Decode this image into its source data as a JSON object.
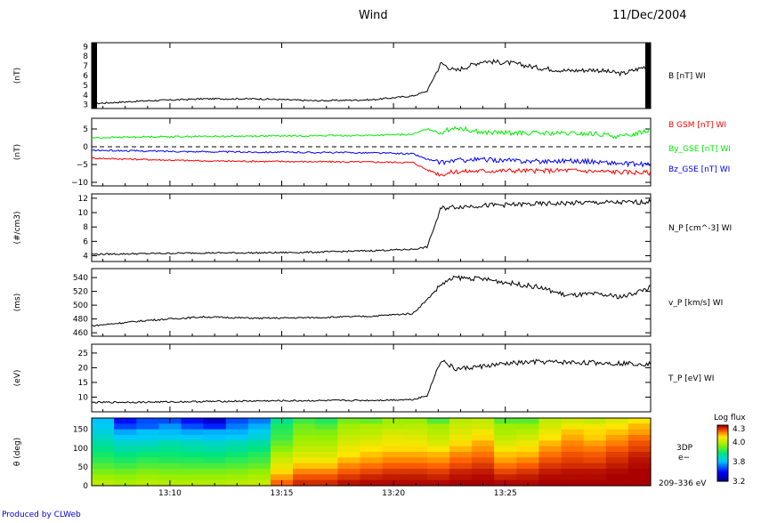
{
  "header": {
    "title": "Wind",
    "date": "11/Dec/2004"
  },
  "footer": {
    "credit": "Produced by CLWeb"
  },
  "chart_data": [
    {
      "type": "line",
      "panel": "B",
      "ylabel": "(nT)",
      "series_label": "B [nT] WI",
      "yticks": [
        "3",
        "4",
        "5",
        "6",
        "7",
        "8",
        "9"
      ],
      "ylim": [
        2.6,
        9.4
      ],
      "x_range_min": [
        0,
        20
      ],
      "x": [
        0,
        2,
        4,
        6,
        8,
        10,
        11.5,
        12,
        12.5,
        13,
        14,
        15,
        16,
        17,
        18,
        19,
        20
      ],
      "series": [
        {
          "color": "#000000",
          "values": [
            3.1,
            3.4,
            3.6,
            3.6,
            3.4,
            3.5,
            3.9,
            4.4,
            7.3,
            6.5,
            7.5,
            7.3,
            6.8,
            6.5,
            6.6,
            6.2,
            7.1
          ]
        }
      ]
    },
    {
      "type": "line",
      "panel": "B components",
      "ylabel": "(nT)",
      "yticks": [
        "5",
        "0",
        "−5",
        "−10"
      ],
      "ylim": [
        -11,
        8
      ],
      "zero_line": true,
      "x": [
        0,
        2,
        4,
        6,
        8,
        10,
        11.5,
        12,
        12.5,
        13,
        14,
        15,
        16,
        17,
        18,
        19,
        20
      ],
      "series": [
        {
          "name": "B GSM [nT] WI",
          "color": "#ff0000",
          "values": [
            -3.2,
            -3.6,
            -4.0,
            -4.1,
            -4.2,
            -4.3,
            -4.4,
            -6.5,
            -7.8,
            -7.0,
            -6.8,
            -6.7,
            -6.8,
            -6.6,
            -6.9,
            -7.1,
            -7.3
          ]
        },
        {
          "name": "By_GSE [nT] WI",
          "color": "#00ee00",
          "values": [
            2.5,
            2.8,
            2.9,
            3.0,
            3.1,
            3.2,
            3.5,
            5.0,
            4.0,
            5.5,
            4.0,
            3.9,
            3.8,
            3.7,
            3.6,
            2.8,
            4.8
          ]
        },
        {
          "name": "Bz_GSE [nT] WI",
          "color": "#0000ff",
          "values": [
            -1.0,
            -1.2,
            -1.4,
            -1.5,
            -1.6,
            -1.7,
            -2.0,
            -3.5,
            -4.5,
            -3.8,
            -3.6,
            -3.9,
            -4.1,
            -3.9,
            -4.2,
            -4.8,
            -5.0
          ]
        }
      ]
    },
    {
      "type": "line",
      "panel": "N_P",
      "ylabel": "(#/cm3)",
      "series_label": "N_P [cm^-3] WI",
      "yticks": [
        "4",
        "6",
        "8",
        "10",
        "12"
      ],
      "ylim": [
        3.2,
        12.6
      ],
      "x": [
        0,
        2,
        4,
        6,
        8,
        10,
        11.5,
        12,
        12.5,
        13,
        14,
        15,
        16,
        17,
        18,
        19,
        20
      ],
      "series": [
        {
          "color": "#000000",
          "values": [
            4.2,
            4.3,
            4.4,
            4.4,
            4.5,
            4.7,
            4.9,
            5.2,
            10.6,
            10.8,
            11.0,
            11.1,
            11.2,
            11.3,
            11.4,
            11.4,
            11.5
          ]
        }
      ]
    },
    {
      "type": "line",
      "panel": "v_P",
      "ylabel": "(ms)",
      "series_label": "v_P [km/s] WI",
      "yticks": [
        "460",
        "480",
        "500",
        "520",
        "540"
      ],
      "ylim": [
        455,
        553
      ],
      "x": [
        0,
        2,
        4,
        6,
        8,
        10,
        11.5,
        12,
        12.5,
        13,
        14,
        15,
        16,
        17,
        18,
        19,
        20
      ],
      "series": [
        {
          "color": "#000000",
          "values": [
            470,
            478,
            483,
            481,
            482,
            484,
            488,
            508,
            530,
            540,
            538,
            532,
            526,
            514,
            516,
            512,
            526
          ]
        }
      ]
    },
    {
      "type": "line",
      "panel": "T_P",
      "ylabel": "(eV)",
      "series_label": "T_P [eV] WI",
      "yticks": [
        "10",
        "15",
        "20",
        "25"
      ],
      "ylim": [
        5,
        28
      ],
      "x": [
        0,
        2,
        4,
        6,
        8,
        10,
        11.5,
        12,
        12.5,
        13,
        14,
        15,
        16,
        17,
        18,
        19,
        20
      ],
      "series": [
        {
          "color": "#000000",
          "values": [
            8.2,
            8.3,
            8.5,
            8.7,
            8.8,
            8.9,
            9.2,
            10.5,
            22.8,
            19.5,
            20.5,
            21.5,
            22,
            21.8,
            21.7,
            21.5,
            21.3
          ]
        }
      ]
    },
    {
      "type": "heatmap",
      "panel": "3DP e-",
      "ylabel": "θ (deg)",
      "yticks": [
        "0",
        "50",
        "100",
        "150"
      ],
      "ylim": [
        0,
        180
      ],
      "side_label": [
        "3DP",
        "e−",
        "209–336 eV"
      ],
      "colorbar": {
        "title": "Log flux",
        "ticks": [
          "4.3",
          "4.0",
          "3.8",
          "3.2"
        ],
        "min": 3.2,
        "max": 4.3
      },
      "xticks": [
        "13:10",
        "13:15",
        "13:20",
        "13:25"
      ],
      "x_start_min": 6.5,
      "bin_width_min": 1.0,
      "theta_bin_edges": [
        0,
        15,
        30,
        45,
        60,
        75,
        90,
        105,
        120,
        135,
        150,
        165,
        180
      ],
      "values_rows_top_to_bottom": [
        [
          3.58,
          3.38,
          3.45,
          3.45,
          3.38,
          3.3,
          3.45,
          3.5,
          3.72,
          3.82,
          3.79,
          3.88,
          3.86,
          3.93,
          3.92,
          3.84,
          3.97,
          3.98,
          3.85,
          3.85,
          3.98,
          4.01,
          3.99,
          4.03,
          4.07
        ],
        [
          3.6,
          3.44,
          3.47,
          3.53,
          3.45,
          3.4,
          3.5,
          3.56,
          3.78,
          3.87,
          3.84,
          3.93,
          3.95,
          3.96,
          3.97,
          3.94,
          4.0,
          4.01,
          3.93,
          3.92,
          4.01,
          4.06,
          4.06,
          4.08,
          4.12
        ],
        [
          3.63,
          3.55,
          3.58,
          3.57,
          3.55,
          3.56,
          3.56,
          3.61,
          3.8,
          3.89,
          3.89,
          3.96,
          3.97,
          4.01,
          4.0,
          3.96,
          4.02,
          4.06,
          3.95,
          3.97,
          4.05,
          4.11,
          4.09,
          4.11,
          4.14
        ],
        [
          3.66,
          3.59,
          3.6,
          3.61,
          3.6,
          3.58,
          3.6,
          3.64,
          3.82,
          3.92,
          3.91,
          3.99,
          4.0,
          4.04,
          4.03,
          3.99,
          4.05,
          4.09,
          3.98,
          4.01,
          4.08,
          4.13,
          4.1,
          4.14,
          4.18
        ],
        [
          3.7,
          3.66,
          3.66,
          3.69,
          3.67,
          3.66,
          3.68,
          3.7,
          3.86,
          3.95,
          3.95,
          4.02,
          4.04,
          4.06,
          4.06,
          4.02,
          4.09,
          4.13,
          4.02,
          4.05,
          4.12,
          4.16,
          4.14,
          4.17,
          4.21
        ],
        [
          3.73,
          3.69,
          3.7,
          3.72,
          3.7,
          3.69,
          3.71,
          3.74,
          3.9,
          3.98,
          3.98,
          4.05,
          4.08,
          4.09,
          4.09,
          4.07,
          4.12,
          4.15,
          4.06,
          4.09,
          4.15,
          4.18,
          4.17,
          4.2,
          4.23
        ],
        [
          3.77,
          3.74,
          3.76,
          3.76,
          3.75,
          3.74,
          3.76,
          3.79,
          3.96,
          4.02,
          4.02,
          4.08,
          4.11,
          4.13,
          4.13,
          4.12,
          4.16,
          4.18,
          4.11,
          4.12,
          4.18,
          4.21,
          4.2,
          4.23,
          4.26
        ],
        [
          3.8,
          3.78,
          3.8,
          3.79,
          3.79,
          3.78,
          3.8,
          3.82,
          4.0,
          4.06,
          4.06,
          4.12,
          4.14,
          4.16,
          4.16,
          4.15,
          4.19,
          4.21,
          4.14,
          4.16,
          4.21,
          4.23,
          4.22,
          4.25,
          4.28
        ],
        [
          3.84,
          3.82,
          3.84,
          3.84,
          3.83,
          3.83,
          3.84,
          3.86,
          4.04,
          4.11,
          4.11,
          4.16,
          4.18,
          4.2,
          4.2,
          4.19,
          4.22,
          4.24,
          4.18,
          4.2,
          4.24,
          4.25,
          4.25,
          4.27,
          4.29
        ],
        [
          3.88,
          3.87,
          3.89,
          3.88,
          3.88,
          3.88,
          3.89,
          3.91,
          4.09,
          4.16,
          4.16,
          4.2,
          4.22,
          4.24,
          4.24,
          4.23,
          4.26,
          4.27,
          4.22,
          4.24,
          4.27,
          4.28,
          4.28,
          4.29,
          4.3
        ],
        [
          3.93,
          3.91,
          3.93,
          3.92,
          3.92,
          3.92,
          3.93,
          3.95,
          4.14,
          4.21,
          4.21,
          4.24,
          4.26,
          4.27,
          4.27,
          4.26,
          4.28,
          4.29,
          4.26,
          4.27,
          4.29,
          4.29,
          4.29,
          4.3,
          4.3
        ],
        [
          3.97,
          3.95,
          3.97,
          3.96,
          3.96,
          3.96,
          3.97,
          3.99,
          4.19,
          4.25,
          4.25,
          4.28,
          4.29,
          4.29,
          4.29,
          4.29,
          4.3,
          4.3,
          4.29,
          4.29,
          4.3,
          4.3,
          4.3,
          4.3,
          4.3
        ]
      ]
    }
  ]
}
